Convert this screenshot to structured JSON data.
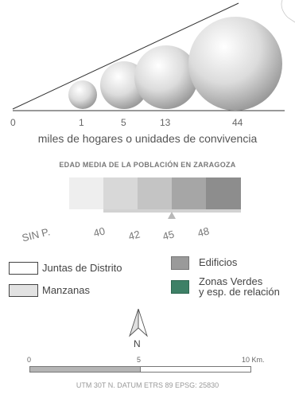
{
  "households_legend": {
    "ticks": [
      "0",
      "1",
      "5",
      "13",
      "44"
    ],
    "caption": "miles de hogares o unidades de convivencia"
  },
  "age_legend": {
    "title": "EDAD MEDIA DE LA POBLACIÓN EN ZARAGOZA",
    "classes": [
      {
        "label": "SIN P.",
        "color": "#eeeeee"
      },
      {
        "label": "40",
        "color": "#d8d8d8"
      },
      {
        "label": "42",
        "color": "#c4c4c4"
      },
      {
        "label": "45",
        "color": "#a6a6a6"
      },
      {
        "label": "48",
        "color": "#8d8d8d"
      }
    ],
    "marker_color": "#b8b8b8"
  },
  "layers": {
    "districts": {
      "label": "Juntas de Distrito"
    },
    "blocks": {
      "label": "Manzanas",
      "color": "#e2e2e2"
    },
    "buildings": {
      "label": "Edificios",
      "color": "#9a9a9a"
    },
    "green": {
      "label_line1": "Zonas Verdes",
      "label_line2": "y esp. de relación",
      "color": "#3d8066"
    }
  },
  "north": {
    "label": "N"
  },
  "scale": {
    "ticks": [
      "0",
      "5",
      "10 Km."
    ]
  },
  "projection": "UTM 30T N. DATUM ETRS 89 EPSG: 25830"
}
